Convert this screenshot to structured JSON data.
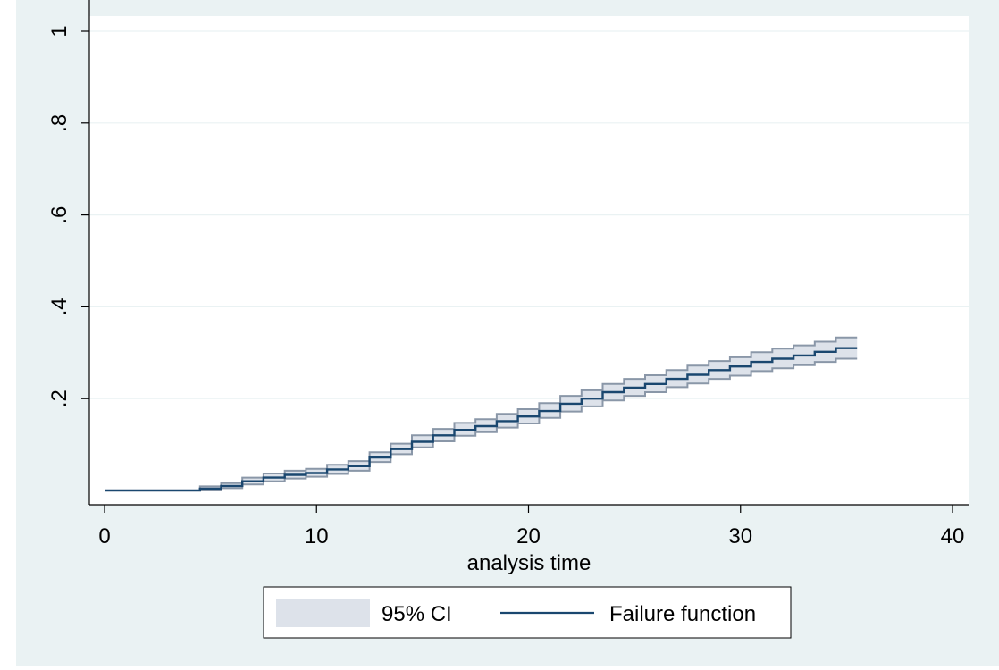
{
  "chart_data": {
    "type": "line",
    "title": "",
    "xlabel": "analysis time",
    "ylabel": "",
    "xlim": [
      0,
      40
    ],
    "ylim": [
      0,
      1
    ],
    "x_ticks": [
      0,
      10,
      20,
      30,
      40
    ],
    "x_tick_labels": [
      "0",
      "10",
      "20",
      "30",
      "40"
    ],
    "y_ticks": [
      0.2,
      0.4,
      0.6,
      0.8,
      1
    ],
    "y_tick_labels": [
      ".2",
      ".4",
      ".6",
      ".8",
      "1"
    ],
    "grid": true,
    "legend_position": "bottom",
    "legend": [
      "95% CI",
      "Failure function"
    ],
    "colors": {
      "outer_background": "#eaf2f3",
      "plot_background": "#ffffff",
      "gridline": "#eaf2f3",
      "line": "#1a476f",
      "ci_fill": "#dde2ea",
      "ci_edge": "#8a97a8"
    },
    "series": [
      {
        "name": "Failure function",
        "type": "step",
        "x": [
          0,
          4.5,
          5.5,
          6.5,
          7.5,
          8.5,
          9.5,
          10.5,
          11.5,
          12.5,
          13.5,
          14.5,
          15.5,
          16.5,
          17.5,
          18.5,
          19.5,
          20.5,
          21.5,
          22.5,
          23.5,
          24.5,
          25.5,
          26.5,
          27.5,
          28.5,
          29.5,
          30.5,
          31.5,
          32.5,
          33.5,
          34.5,
          35.5
        ],
        "y": [
          0,
          0.004,
          0.01,
          0.02,
          0.028,
          0.034,
          0.038,
          0.046,
          0.053,
          0.072,
          0.09,
          0.106,
          0.12,
          0.132,
          0.14,
          0.151,
          0.161,
          0.173,
          0.189,
          0.2,
          0.214,
          0.224,
          0.232,
          0.243,
          0.252,
          0.262,
          0.27,
          0.28,
          0.287,
          0.294,
          0.302,
          0.31,
          0.31
        ]
      },
      {
        "name": "95% CI",
        "type": "step-band",
        "x": [
          0,
          4.5,
          5.5,
          6.5,
          7.5,
          8.5,
          9.5,
          10.5,
          11.5,
          12.5,
          13.5,
          14.5,
          15.5,
          16.5,
          17.5,
          18.5,
          19.5,
          20.5,
          21.5,
          22.5,
          23.5,
          24.5,
          25.5,
          26.5,
          27.5,
          28.5,
          29.5,
          30.5,
          31.5,
          32.5,
          33.5,
          34.5,
          35.5
        ],
        "lower": [
          0,
          0,
          0.005,
          0.013,
          0.02,
          0.026,
          0.03,
          0.036,
          0.043,
          0.062,
          0.079,
          0.094,
          0.107,
          0.119,
          0.127,
          0.137,
          0.146,
          0.158,
          0.172,
          0.183,
          0.196,
          0.206,
          0.214,
          0.225,
          0.233,
          0.243,
          0.25,
          0.26,
          0.266,
          0.273,
          0.28,
          0.287,
          0.287
        ],
        "upper": [
          0,
          0.009,
          0.016,
          0.028,
          0.037,
          0.043,
          0.047,
          0.056,
          0.064,
          0.083,
          0.102,
          0.12,
          0.134,
          0.147,
          0.155,
          0.167,
          0.177,
          0.19,
          0.206,
          0.218,
          0.232,
          0.243,
          0.251,
          0.262,
          0.272,
          0.282,
          0.29,
          0.301,
          0.309,
          0.316,
          0.324,
          0.333,
          0.333
        ]
      }
    ]
  }
}
